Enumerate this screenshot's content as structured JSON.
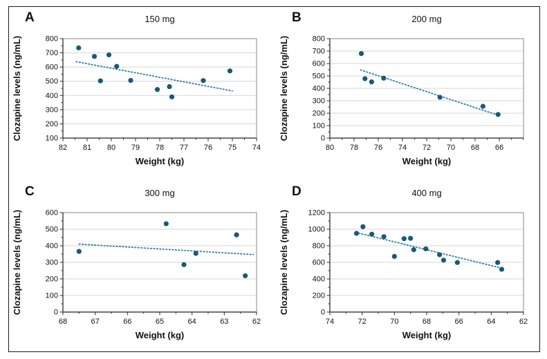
{
  "figure": {
    "xlabel": "Weight (kg)",
    "ylabel": "Clozapine levels (ng/mL)"
  },
  "colors": {
    "point": "#1b5878",
    "trend": "#2f7ca6",
    "grid": "#d6d6d6",
    "plot_border": "#9a9a9a",
    "axis": "#2b2b2b",
    "text": "#111111",
    "figure_border": "#1a1a1a"
  },
  "chart_data": [
    {
      "panel": "A",
      "type": "scatter",
      "title": "150 mg",
      "xlabel": "Weight (kg)",
      "ylabel": "Clozapine levels (ng/mL)",
      "xlim": [
        82,
        74
      ],
      "x_ticks": [
        82,
        81,
        80,
        79,
        78,
        77,
        76,
        75,
        74
      ],
      "x_minor_step": 0.5,
      "ylim": [
        100,
        800
      ],
      "y_ticks": [
        100,
        200,
        300,
        400,
        500,
        600,
        700,
        800
      ],
      "y_minor_step": 50,
      "x_axis_direction": "reversed",
      "grid": "horizontal",
      "points": [
        [
          81.35,
          735
        ],
        [
          80.7,
          675
        ],
        [
          80.45,
          503
        ],
        [
          80.1,
          686
        ],
        [
          79.78,
          605
        ],
        [
          79.2,
          506
        ],
        [
          78.1,
          442
        ],
        [
          77.6,
          462
        ],
        [
          77.5,
          390
        ],
        [
          76.2,
          505
        ],
        [
          75.1,
          573
        ]
      ],
      "trendline": {
        "x1": 81.45,
        "y1": 638,
        "x2": 75.0,
        "y2": 432,
        "style": "dotted"
      }
    },
    {
      "panel": "B",
      "type": "scatter",
      "title": "200 mg",
      "xlabel": "Weight (kg)",
      "ylabel": "Clozapine levels (ng/mL)",
      "xlim": [
        80,
        64
      ],
      "x_ticks": [
        80,
        78,
        76,
        74,
        72,
        70,
        68,
        66
      ],
      "x_minor_step": 1,
      "ylim": [
        0,
        800
      ],
      "y_ticks": [
        0,
        100,
        200,
        300,
        400,
        500,
        600,
        700,
        800
      ],
      "y_minor_step": 50,
      "x_axis_direction": "reversed",
      "grid": "horizontal",
      "points": [
        [
          77.4,
          680
        ],
        [
          77.1,
          478
        ],
        [
          76.55,
          452
        ],
        [
          75.55,
          482
        ],
        [
          70.9,
          328
        ],
        [
          67.35,
          256
        ],
        [
          66.1,
          190
        ]
      ],
      "trendline": {
        "x1": 77.45,
        "y1": 548,
        "x2": 66.05,
        "y2": 183,
        "style": "dotted"
      }
    },
    {
      "panel": "C",
      "type": "scatter",
      "title": "300 mg",
      "xlabel": "Weight (kg)",
      "ylabel": "Clozapine levels (ng/mL)",
      "xlim": [
        68,
        62
      ],
      "x_ticks": [
        68,
        67,
        66,
        65,
        64,
        63,
        62
      ],
      "x_minor_step": 0.5,
      "ylim": [
        0,
        600
      ],
      "y_ticks": [
        0,
        100,
        200,
        300,
        400,
        500,
        600
      ],
      "y_minor_step": 50,
      "x_axis_direction": "reversed",
      "grid": "horizontal",
      "points": [
        [
          67.5,
          366
        ],
        [
          64.8,
          533
        ],
        [
          64.25,
          286
        ],
        [
          63.88,
          354
        ],
        [
          62.62,
          466
        ],
        [
          62.35,
          219
        ]
      ],
      "trendline": {
        "x1": 67.5,
        "y1": 410,
        "x2": 62.1,
        "y2": 347,
        "style": "dotted"
      }
    },
    {
      "panel": "D",
      "type": "scatter",
      "title": "400 mg",
      "xlabel": "Weight (kg)",
      "ylabel": "Clozapine levels (ng/mL)",
      "xlim": [
        74,
        62
      ],
      "x_ticks": [
        74,
        72,
        70,
        68,
        66,
        64,
        62
      ],
      "x_minor_step": 1,
      "ylim": [
        0,
        1200
      ],
      "y_ticks": [
        0,
        200,
        400,
        600,
        800,
        1000,
        1200
      ],
      "y_minor_step": 100,
      "x_axis_direction": "reversed",
      "grid": "horizontal",
      "points": [
        [
          72.35,
          950
        ],
        [
          71.95,
          1030
        ],
        [
          71.4,
          940
        ],
        [
          70.65,
          910
        ],
        [
          70.0,
          672
        ],
        [
          69.4,
          886
        ],
        [
          69.0,
          890
        ],
        [
          68.8,
          752
        ],
        [
          68.05,
          763
        ],
        [
          67.2,
          692
        ],
        [
          66.95,
          626
        ],
        [
          66.1,
          598
        ],
        [
          63.6,
          598
        ],
        [
          63.35,
          516
        ]
      ],
      "trendline": {
        "x1": 72.4,
        "y1": 962,
        "x2": 63.3,
        "y2": 528,
        "style": "dotted"
      }
    }
  ]
}
